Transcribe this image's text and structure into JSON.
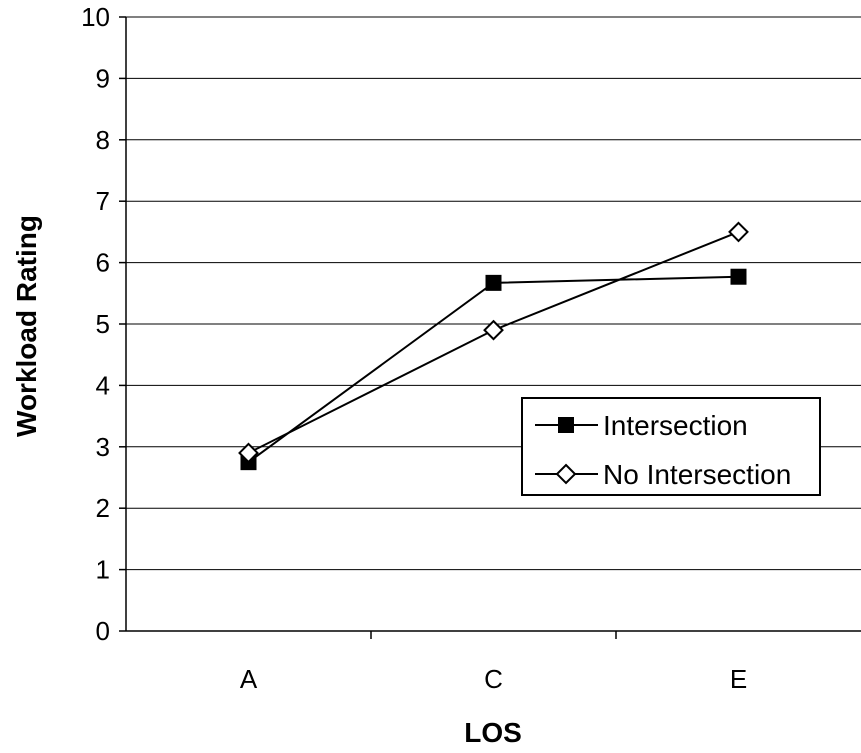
{
  "chart_data": {
    "type": "line",
    "categories": [
      "A",
      "C",
      "E"
    ],
    "xlabel": "LOS",
    "ylabel": "Workload Rating",
    "ylim": [
      0,
      10
    ],
    "yticks": [
      "0",
      "1",
      "2",
      "3",
      "4",
      "5",
      "6",
      "7",
      "8",
      "9",
      "10"
    ],
    "grid": "horizontal",
    "legend_position": "right",
    "series": [
      {
        "name": "Intersection",
        "values": [
          2.75,
          5.67,
          5.77
        ],
        "marker": "square",
        "color": "#000000"
      },
      {
        "name": "No Intersection",
        "values": [
          2.9,
          4.9,
          6.5
        ],
        "marker": "diamond",
        "color": "#000000"
      }
    ]
  }
}
